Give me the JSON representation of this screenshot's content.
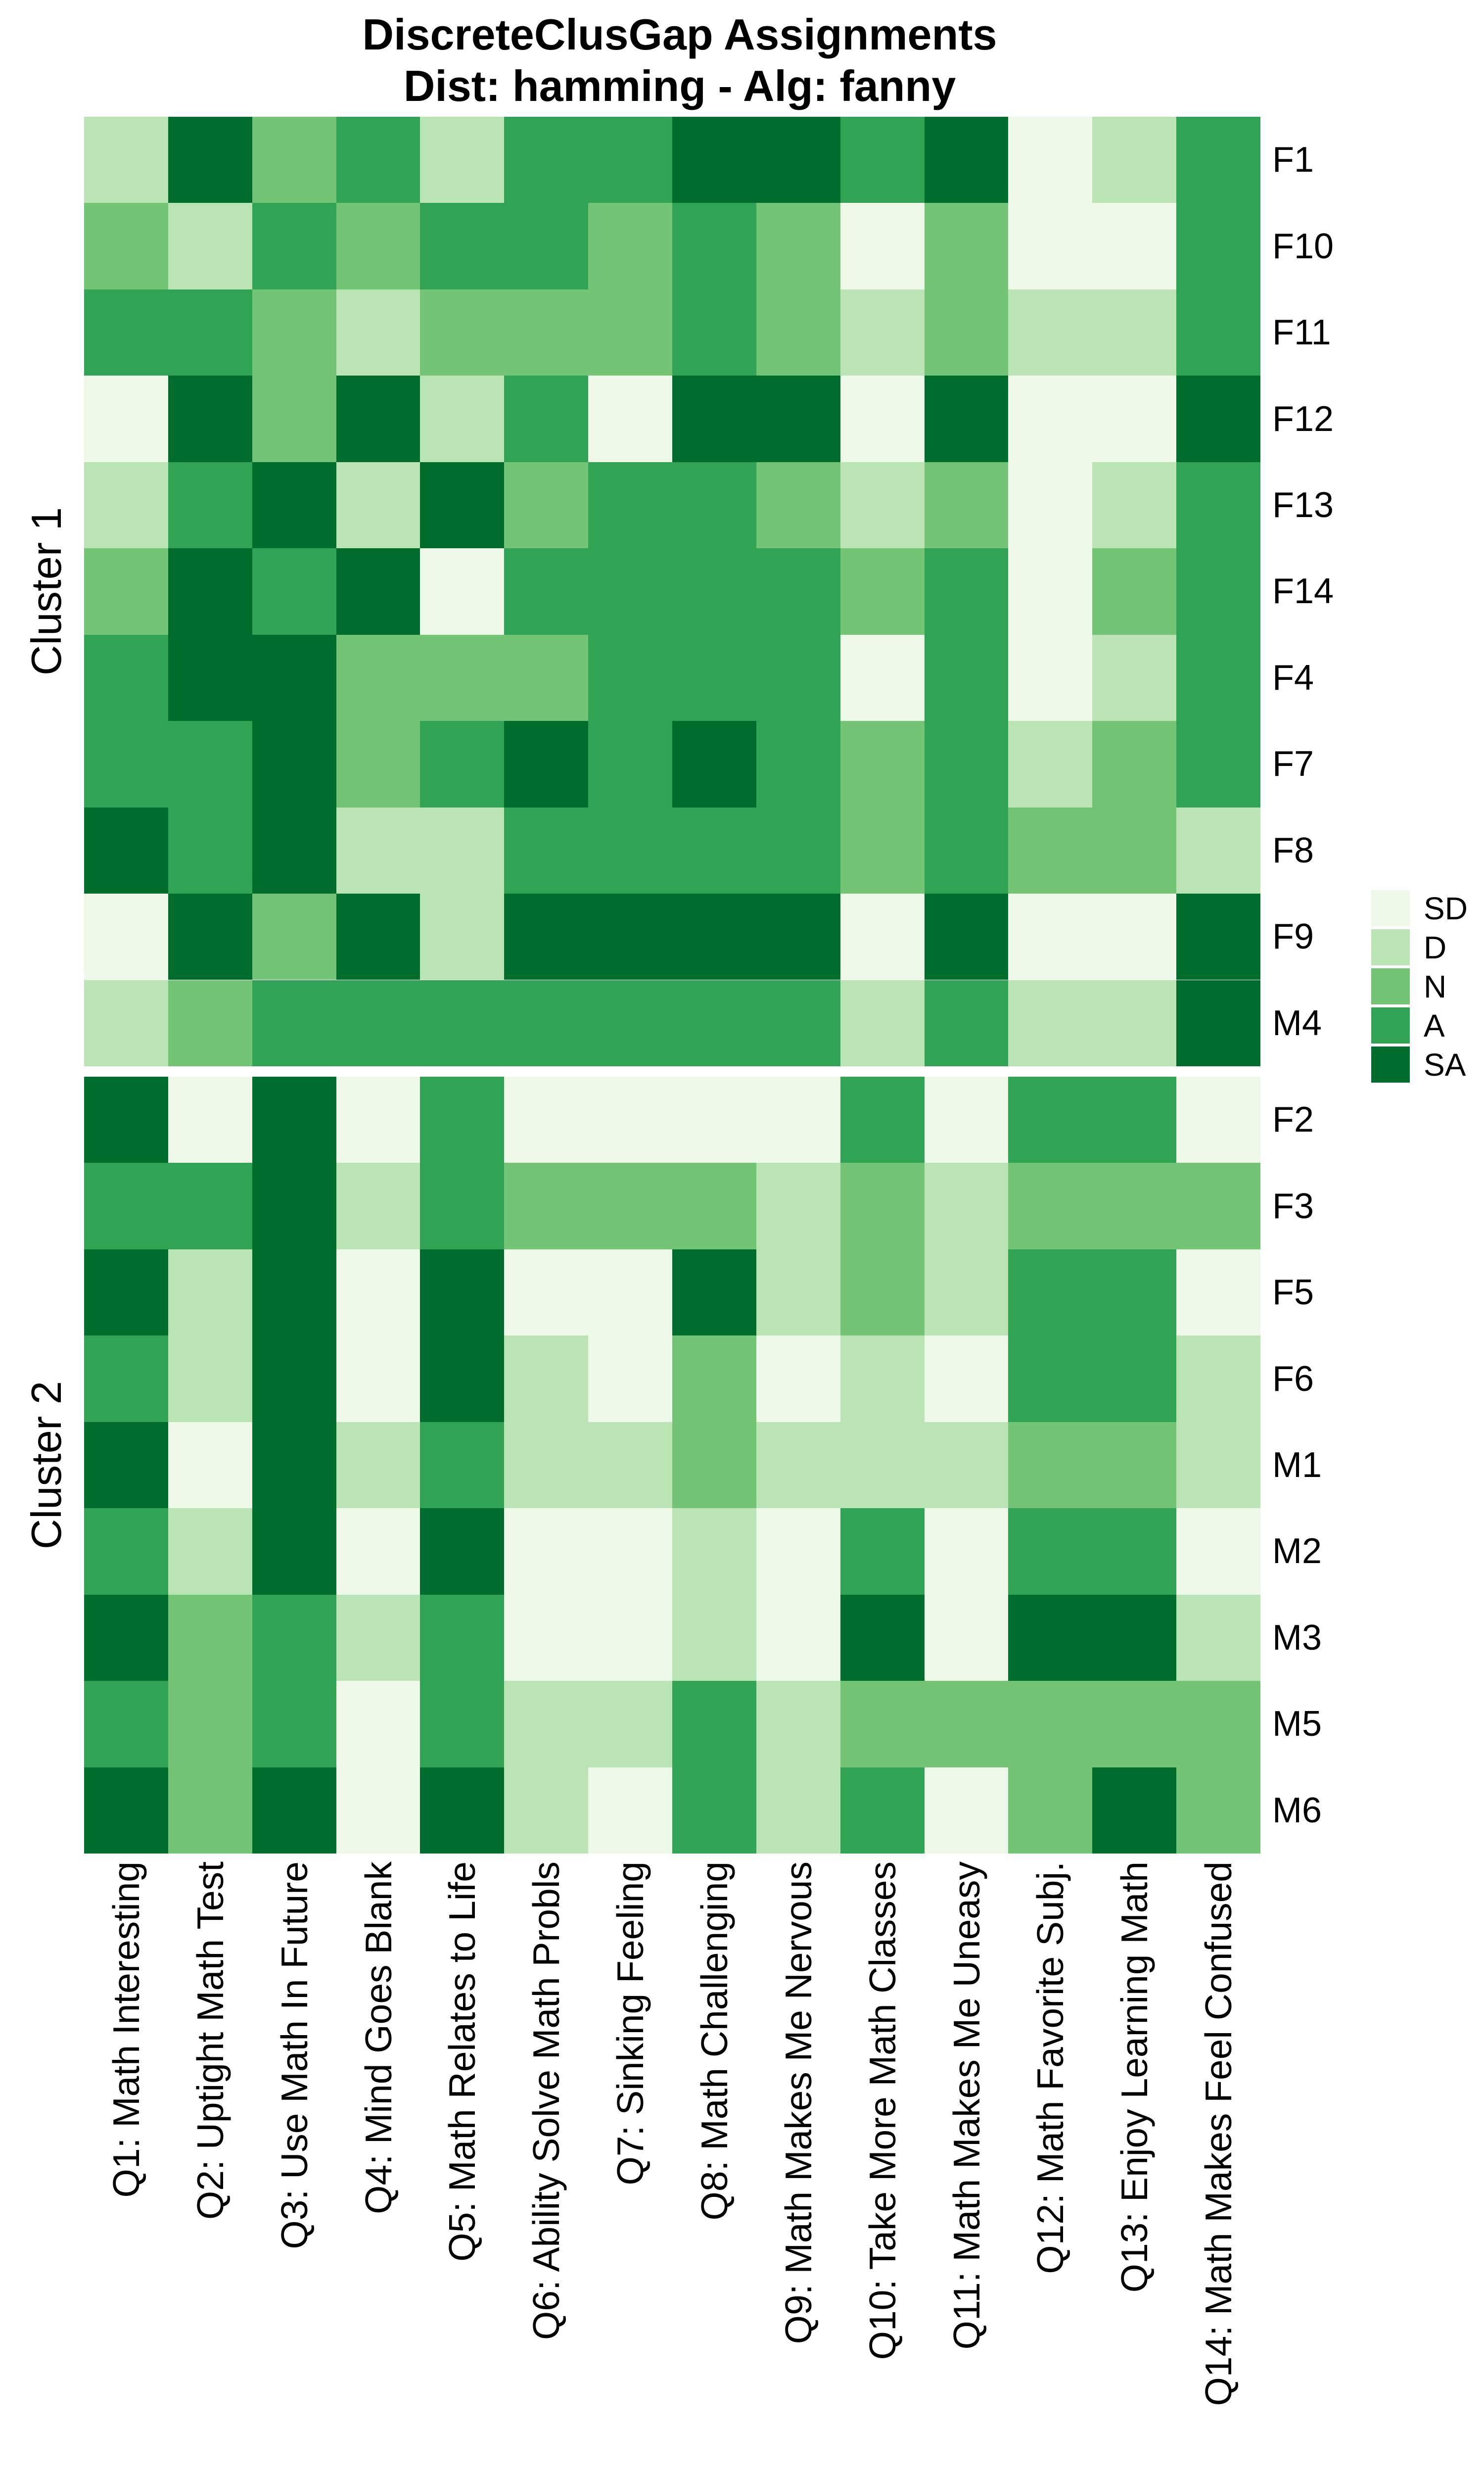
{
  "title": {
    "line1": "DiscreteClusGap Assignments",
    "line2": "Dist: hamming - Alg: fanny"
  },
  "legend": {
    "position": "right",
    "levels": [
      {
        "code": "SD",
        "color": "#EDF8E9"
      },
      {
        "code": "D",
        "color": "#BAE4B3"
      },
      {
        "code": "N",
        "color": "#74C476"
      },
      {
        "code": "A",
        "color": "#31A354"
      },
      {
        "code": "SA",
        "color": "#006D2C"
      }
    ]
  },
  "chart_data": {
    "type": "heatmap",
    "title": "DiscreteClusGap Assignments — Dist: hamming - Alg: fanny",
    "value_scale": [
      "SD",
      "D",
      "N",
      "A",
      "SA"
    ],
    "palette": {
      "SD": "#EDF8E9",
      "D": "#BAE4B3",
      "N": "#74C476",
      "A": "#31A354",
      "SA": "#006D2C"
    },
    "columns": [
      "Q1: Math Interesting",
      "Q2: Uptight Math Test",
      "Q3: Use Math In Future",
      "Q4: Mind Goes Blank",
      "Q5: Math Relates to Life",
      "Q6: Ability Solve Math Probls",
      "Q7: Sinking Feeling",
      "Q8: Math Challenging",
      "Q9: Math Makes Me Nervous",
      "Q10: Take More Math Classes",
      "Q11: Math Makes Me Uneasy",
      "Q12: Math Favorite Subj.",
      "Q13: Enjoy Learning Math",
      "Q14: Math Makes Feel Confused"
    ],
    "row_clusters": [
      {
        "name": "Cluster 1",
        "rows": [
          {
            "id": "F1",
            "values": [
              "D",
              "SA",
              "N",
              "A",
              "D",
              "A",
              "A",
              "SA",
              "SA",
              "A",
              "SA",
              "SD",
              "D",
              "A"
            ]
          },
          {
            "id": "F10",
            "values": [
              "N",
              "D",
              "A",
              "N",
              "A",
              "A",
              "N",
              "A",
              "N",
              "SD",
              "N",
              "SD",
              "SD",
              "A"
            ]
          },
          {
            "id": "F11",
            "values": [
              "A",
              "A",
              "N",
              "D",
              "N",
              "N",
              "N",
              "A",
              "N",
              "D",
              "N",
              "D",
              "D",
              "A"
            ]
          },
          {
            "id": "F12",
            "values": [
              "SD",
              "SA",
              "N",
              "SA",
              "D",
              "A",
              "SD",
              "SA",
              "SA",
              "SD",
              "SA",
              "SD",
              "SD",
              "SA"
            ]
          },
          {
            "id": "F13",
            "values": [
              "D",
              "A",
              "SA",
              "D",
              "SA",
              "N",
              "A",
              "A",
              "N",
              "D",
              "N",
              "SD",
              "D",
              "A"
            ]
          },
          {
            "id": "F14",
            "values": [
              "N",
              "SA",
              "A",
              "SA",
              "SD",
              "A",
              "A",
              "A",
              "A",
              "N",
              "A",
              "SD",
              "N",
              "A"
            ]
          },
          {
            "id": "F4",
            "values": [
              "A",
              "SA",
              "SA",
              "N",
              "N",
              "N",
              "A",
              "A",
              "A",
              "SD",
              "A",
              "SD",
              "D",
              "A"
            ]
          },
          {
            "id": "F7",
            "values": [
              "A",
              "A",
              "SA",
              "N",
              "A",
              "SA",
              "A",
              "SA",
              "A",
              "N",
              "A",
              "D",
              "N",
              "A"
            ]
          },
          {
            "id": "F8",
            "values": [
              "SA",
              "A",
              "SA",
              "D",
              "D",
              "A",
              "A",
              "A",
              "A",
              "N",
              "A",
              "N",
              "N",
              "D"
            ]
          },
          {
            "id": "F9",
            "values": [
              "SD",
              "SA",
              "N",
              "SA",
              "D",
              "SA",
              "SA",
              "SA",
              "SA",
              "SD",
              "SA",
              "SD",
              "SD",
              "SA"
            ]
          },
          {
            "id": "M4",
            "values": [
              "D",
              "N",
              "A",
              "A",
              "A",
              "A",
              "A",
              "A",
              "A",
              "D",
              "A",
              "D",
              "D",
              "SA"
            ]
          }
        ]
      },
      {
        "name": "Cluster 2",
        "rows": [
          {
            "id": "F2",
            "values": [
              "SA",
              "SD",
              "SA",
              "SD",
              "A",
              "SD",
              "SD",
              "SD",
              "SD",
              "A",
              "SD",
              "A",
              "A",
              "SD"
            ]
          },
          {
            "id": "F3",
            "values": [
              "A",
              "A",
              "SA",
              "D",
              "A",
              "N",
              "N",
              "N",
              "D",
              "N",
              "D",
              "N",
              "N",
              "N"
            ]
          },
          {
            "id": "F5",
            "values": [
              "SA",
              "D",
              "SA",
              "SD",
              "SA",
              "SD",
              "SD",
              "SA",
              "D",
              "N",
              "D",
              "A",
              "A",
              "SD"
            ]
          },
          {
            "id": "F6",
            "values": [
              "A",
              "D",
              "SA",
              "SD",
              "SA",
              "D",
              "SD",
              "N",
              "SD",
              "D",
              "SD",
              "A",
              "A",
              "D"
            ]
          },
          {
            "id": "M1",
            "values": [
              "SA",
              "SD",
              "SA",
              "D",
              "A",
              "D",
              "D",
              "N",
              "D",
              "D",
              "D",
              "N",
              "N",
              "D"
            ]
          },
          {
            "id": "M2",
            "values": [
              "A",
              "D",
              "SA",
              "SD",
              "SA",
              "SD",
              "SD",
              "D",
              "SD",
              "A",
              "SD",
              "A",
              "A",
              "SD"
            ]
          },
          {
            "id": "M3",
            "values": [
              "SA",
              "N",
              "A",
              "D",
              "A",
              "SD",
              "SD",
              "D",
              "SD",
              "SA",
              "SD",
              "SA",
              "SA",
              "D"
            ]
          },
          {
            "id": "M5",
            "values": [
              "A",
              "N",
              "A",
              "SD",
              "A",
              "D",
              "D",
              "A",
              "D",
              "N",
              "N",
              "N",
              "N",
              "N"
            ]
          },
          {
            "id": "M6",
            "values": [
              "SA",
              "N",
              "SA",
              "SD",
              "SA",
              "D",
              "SD",
              "A",
              "D",
              "A",
              "SD",
              "N",
              "SA",
              "N"
            ]
          }
        ]
      }
    ],
    "layout": {
      "grid": false,
      "legend_position": "right",
      "x_labels_rotated_degrees": -90,
      "cluster_gap": true
    }
  }
}
